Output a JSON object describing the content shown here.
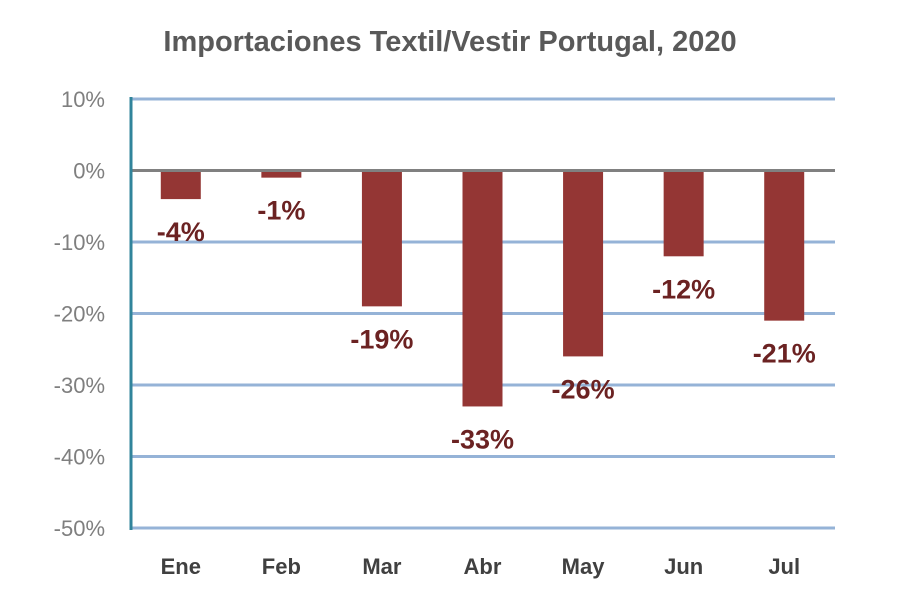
{
  "chart_data": {
    "type": "bar",
    "title": "Importaciones Textil/Vestir Portugal, 2020",
    "xlabel": "",
    "ylabel": "",
    "categories": [
      "Ene",
      "Feb",
      "Mar",
      "Abr",
      "May",
      "Jun",
      "Jul"
    ],
    "values": [
      -4,
      -1,
      -19,
      -33,
      -26,
      -12,
      -21
    ],
    "data_labels": [
      "-4%",
      "-1%",
      "-19%",
      "-33%",
      "-26%",
      "-12%",
      "-21%"
    ],
    "ylim": [
      -50,
      10
    ],
    "yticks": [
      10,
      0,
      -10,
      -20,
      -30,
      -40,
      -50
    ],
    "ytick_labels": [
      "10%",
      "0%",
      "-10%",
      "-20%",
      "-30%",
      "-40%",
      "-50%"
    ],
    "grid": true,
    "legend": "none",
    "colors": {
      "bar": "#943634",
      "label": "#6b2222",
      "grid": "#95b3d7",
      "axis": "#31849b",
      "zero_line": "#808080",
      "tick_text": "#7f7f7f"
    }
  }
}
